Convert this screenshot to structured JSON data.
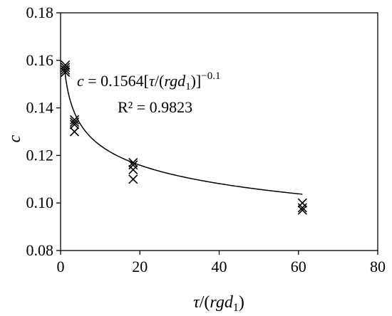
{
  "chart_data": {
    "type": "scatter",
    "title": "",
    "xlabel_parts": {
      "tau": "τ",
      "slash_open": "/(",
      "rg": "rg",
      "d": "d",
      "sub": "1",
      "close": ")"
    },
    "ylabel": "c",
    "xlim": [
      0,
      80
    ],
    "ylim": [
      0.08,
      0.18
    ],
    "xticks": [
      "0",
      "20",
      "40",
      "60",
      "80"
    ],
    "yticks": [
      "0.08",
      "0.10",
      "0.12",
      "0.14",
      "0.16",
      "0.18"
    ],
    "grid": false,
    "marker": "x",
    "points": [
      {
        "x": 1.2,
        "y": 0.158
      },
      {
        "x": 1.2,
        "y": 0.157
      },
      {
        "x": 1.2,
        "y": 0.156
      },
      {
        "x": 1.2,
        "y": 0.155
      },
      {
        "x": 3.5,
        "y": 0.135
      },
      {
        "x": 3.5,
        "y": 0.134
      },
      {
        "x": 3.5,
        "y": 0.133
      },
      {
        "x": 3.5,
        "y": 0.13
      },
      {
        "x": 18.3,
        "y": 0.117
      },
      {
        "x": 18.3,
        "y": 0.116
      },
      {
        "x": 18.3,
        "y": 0.114
      },
      {
        "x": 18.3,
        "y": 0.11
      },
      {
        "x": 61.0,
        "y": 0.1
      },
      {
        "x": 61.0,
        "y": 0.098
      },
      {
        "x": 61.0,
        "y": 0.097
      }
    ],
    "fit": {
      "type": "power",
      "coefficient": 0.1564,
      "exponent": -0.1,
      "x_range": [
        1.0,
        61.0
      ]
    },
    "annotation": {
      "eq_c": "c",
      "eq_eq": " = 0.1564[",
      "eq_tau": "τ",
      "eq_mid": "/(",
      "eq_rg": "rg",
      "eq_d": "d",
      "eq_sub": "1",
      "eq_close": ")]",
      "eq_exp": "−0.1",
      "r2": "R² = 0.9823"
    }
  }
}
